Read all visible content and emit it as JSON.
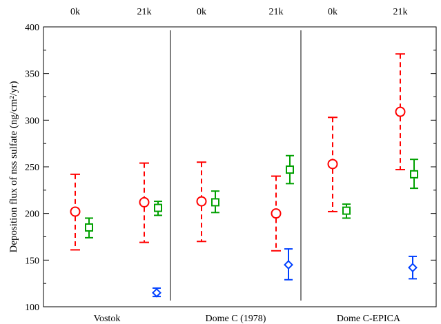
{
  "chart_data": {
    "type": "scatter",
    "ylabel": "Deposition flux of nss sulfate (ng/cm²/yr)",
    "ylim": [
      100,
      400
    ],
    "yticks": [
      100,
      150,
      200,
      250,
      300,
      350,
      400
    ],
    "grid": false,
    "panels": [
      {
        "name": "Vostok",
        "top_labels": [
          "0k",
          "21k"
        ],
        "series": [
          {
            "marker": "circle",
            "color": "#ff0000",
            "dashed": true,
            "points": [
              {
                "period": "0k",
                "value": 202,
                "low": 161,
                "high": 242
              },
              {
                "period": "21k",
                "value": 212,
                "low": 169,
                "high": 254
              }
            ]
          },
          {
            "marker": "square",
            "color": "#00a000",
            "dashed": false,
            "points": [
              {
                "period": "0k",
                "value": 185,
                "low": 174,
                "high": 195
              },
              {
                "period": "21k",
                "value": 206,
                "low": 198,
                "high": 213
              }
            ]
          },
          {
            "marker": "diamond",
            "color": "#0040ff",
            "dashed": false,
            "points": [
              {
                "period": "21k",
                "value": 115,
                "low": 111,
                "high": 120
              }
            ]
          }
        ]
      },
      {
        "name": "Dome C (1978)",
        "top_labels": [
          "0k",
          "21k"
        ],
        "series": [
          {
            "marker": "circle",
            "color": "#ff0000",
            "dashed": true,
            "points": [
              {
                "period": "0k",
                "value": 213,
                "low": 170,
                "high": 255
              },
              {
                "period": "21k",
                "value": 200,
                "low": 160,
                "high": 240
              }
            ]
          },
          {
            "marker": "square",
            "color": "#00a000",
            "dashed": false,
            "points": [
              {
                "period": "0k",
                "value": 212,
                "low": 201,
                "high": 224
              },
              {
                "period": "21k",
                "value": 247,
                "low": 232,
                "high": 262
              }
            ]
          },
          {
            "marker": "diamond",
            "color": "#0040ff",
            "dashed": false,
            "points": [
              {
                "period": "21k",
                "value": 145,
                "low": 129,
                "high": 162
              }
            ]
          }
        ]
      },
      {
        "name": "Dome C-EPICA",
        "top_labels": [
          "0k",
          "21k"
        ],
        "series": [
          {
            "marker": "circle",
            "color": "#ff0000",
            "dashed": true,
            "points": [
              {
                "period": "0k",
                "value": 253,
                "low": 202,
                "high": 303
              },
              {
                "period": "21k",
                "value": 309,
                "low": 247,
                "high": 371
              }
            ]
          },
          {
            "marker": "square",
            "color": "#00a000",
            "dashed": false,
            "points": [
              {
                "period": "0k",
                "value": 203,
                "low": 195,
                "high": 210
              },
              {
                "period": "21k",
                "value": 242,
                "low": 227,
                "high": 258
              }
            ]
          },
          {
            "marker": "diamond",
            "color": "#0040ff",
            "dashed": false,
            "points": [
              {
                "period": "21k",
                "value": 142,
                "low": 130,
                "high": 154
              }
            ]
          }
        ]
      }
    ]
  }
}
